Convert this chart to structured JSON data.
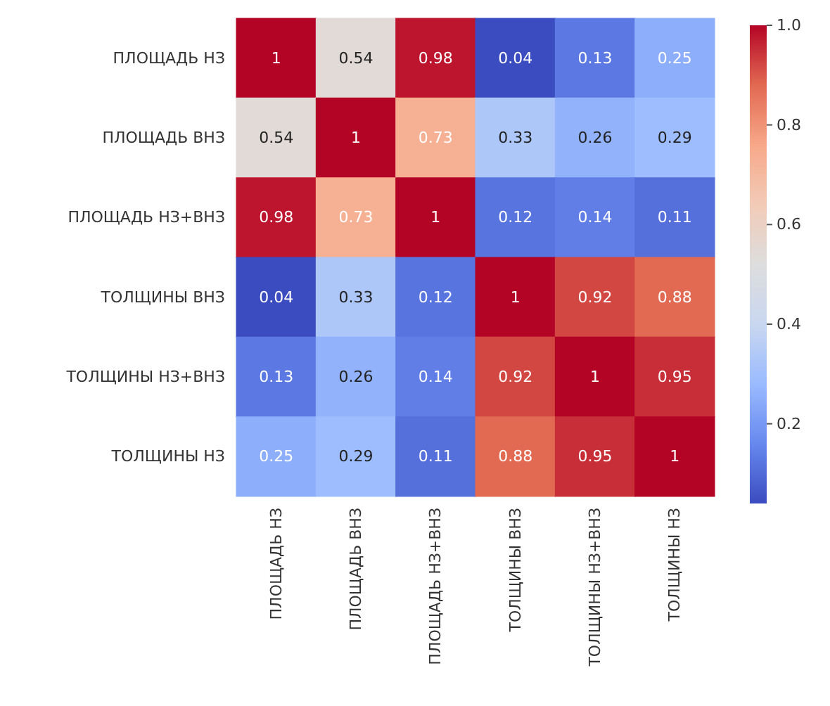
{
  "chart_data": {
    "type": "heatmap",
    "categories": [
      "ПЛОЩАДЬ НЗ",
      "ПЛОЩАДЬ ВНЗ",
      "ПЛОЩАДЬ НЗ+ВНЗ",
      "ТОЛЩИНЫ ВНЗ",
      "ТОЛЩИНЫ НЗ+ВНЗ",
      "ТОЛЩИНЫ НЗ"
    ],
    "y_categories": [
      "ПЛОЩАДЬ НЗ",
      "ПЛОЩАДЬ ВНЗ",
      "ПЛОЩАДЬ НЗ+ВНЗ",
      "ТОЛЩИНЫ ВНЗ",
      "ТОЛЩИНЫ НЗ+ВНЗ",
      "ТОЛЩИНЫ НЗ"
    ],
    "cells": [
      [
        1,
        0.54,
        0.98,
        0.04,
        0.13,
        0.25
      ],
      [
        0.54,
        1,
        0.73,
        0.33,
        0.26,
        0.29
      ],
      [
        0.98,
        0.73,
        1,
        0.12,
        0.14,
        0.11
      ],
      [
        0.04,
        0.33,
        0.12,
        1,
        0.92,
        0.88
      ],
      [
        0.13,
        0.26,
        0.14,
        0.92,
        1,
        0.95
      ],
      [
        0.25,
        0.29,
        0.11,
        0.88,
        0.95,
        1
      ]
    ],
    "clim": [
      0.04,
      1
    ],
    "cticks": [
      0.2,
      0.4,
      0.6,
      0.8,
      {
        "value": 1,
        "label": "1.0"
      }
    ],
    "data_labels": true
  }
}
